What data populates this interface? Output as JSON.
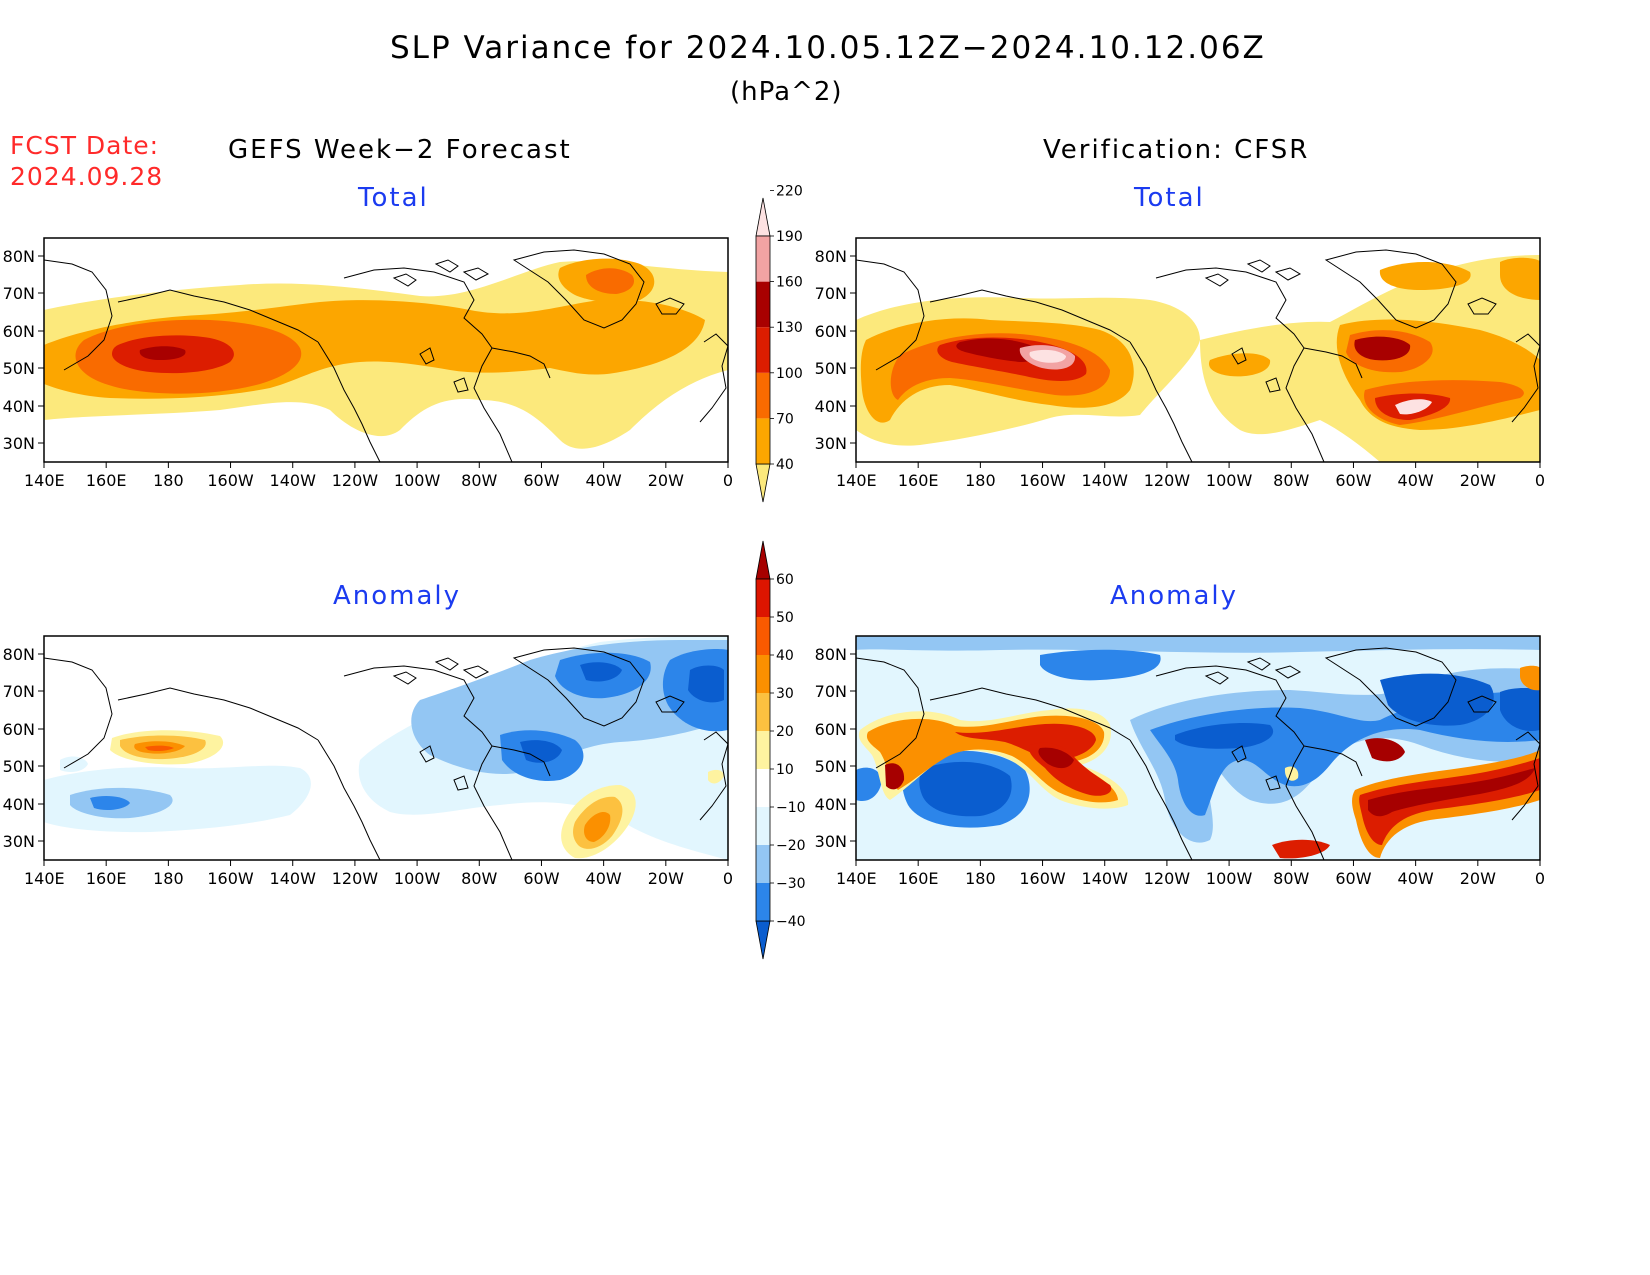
{
  "header": {
    "title": "SLP Variance for 2024.10.05.12Z−2024.10.12.06Z",
    "units": "(hPa^2)",
    "fcst_label": "FCST Date:",
    "fcst_date": "2024.09.28",
    "left_column": "GEFS Week−2 Forecast",
    "right_column": "Verification: CFSR"
  },
  "panels": {
    "tl": {
      "subtitle": "Total"
    },
    "tr": {
      "subtitle": "Total"
    },
    "bl": {
      "subtitle": "Anomaly"
    },
    "br": {
      "subtitle": "Anomaly"
    }
  },
  "axes": {
    "lat_labels": [
      "80N",
      "70N",
      "60N",
      "50N",
      "40N",
      "30N"
    ],
    "lon_labels": [
      "140E",
      "160E",
      "180",
      "160W",
      "140W",
      "120W",
      "100W",
      "80W",
      "60W",
      "40W",
      "20W",
      "0"
    ]
  },
  "colorbars": {
    "total": {
      "levels": [
        "40",
        "70",
        "100",
        "130",
        "160",
        "190",
        "220"
      ],
      "colors": [
        "#fce97c",
        "#fca600",
        "#f96b00",
        "#dc1d00",
        "#a80000",
        "#f2a3a3",
        "#fde2e2"
      ]
    },
    "anomaly": {
      "levels": [
        "-40",
        "-30",
        "-20",
        "-10",
        "10",
        "20",
        "30",
        "40",
        "50",
        "60"
      ],
      "colors": [
        "#0a5dcf",
        "#2c85ea",
        "#93c6f3",
        "#e2f6fe",
        "#ffffff",
        "#fef3a0",
        "#fcc140",
        "#fb9000",
        "#f95a00",
        "#dd1500",
        "#a60000"
      ]
    }
  },
  "colors": {
    "subtitle_blue": "#1b3bf0",
    "fcst_red": "#ff2a2a"
  }
}
